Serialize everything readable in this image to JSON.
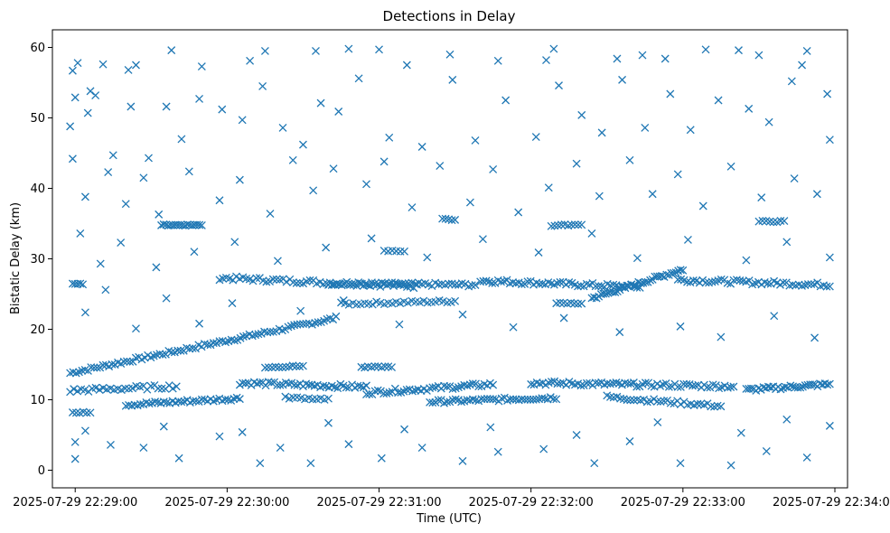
{
  "chart_data": {
    "type": "scatter",
    "title": "Detections in Delay",
    "xlabel": "Time (UTC)",
    "ylabel": "Bistatic Delay (km)",
    "x_unit": "time",
    "xlim": [
      "2025-07-29 22:28:51",
      "2025-07-29 22:34:05"
    ],
    "ylim": [
      -2.5,
      62.5
    ],
    "x_ticks": [
      {
        "value": "2025-07-29 22:29:00",
        "label": "2025-07-29 22:29:00"
      },
      {
        "value": "2025-07-29 22:30:00",
        "label": "2025-07-29 22:30:00"
      },
      {
        "value": "2025-07-29 22:31:00",
        "label": "2025-07-29 22:31:00"
      },
      {
        "value": "2025-07-29 22:32:00",
        "label": "2025-07-29 22:32:00"
      },
      {
        "value": "2025-07-29 22:33:00",
        "label": "2025-07-29 22:33:00"
      },
      {
        "value": "2025-07-29 22:34:00",
        "label": "2025-07-29 22:34:00"
      }
    ],
    "y_ticks": [
      0,
      10,
      20,
      30,
      40,
      50,
      60
    ],
    "grid": false,
    "legend": "none",
    "marker": "x",
    "color": "#1f77b4",
    "points": [
      {
        "x": "2025-07-29 22:28:59",
        "y": 56.7
      },
      {
        "x": "2025-07-29 22:29:01",
        "y": 57.8
      },
      {
        "x": "2025-07-29 22:29:06",
        "y": 53.8
      },
      {
        "x": "2025-07-29 22:29:11",
        "y": 57.6
      },
      {
        "x": "2025-07-29 22:29:21",
        "y": 56.8
      },
      {
        "x": "2025-07-29 22:29:24",
        "y": 57.5
      },
      {
        "x": "2025-07-29 22:29:38",
        "y": 59.6
      },
      {
        "x": "2025-07-29 22:29:50",
        "y": 57.3
      },
      {
        "x": "2025-07-29 22:30:09",
        "y": 58.1
      },
      {
        "x": "2025-07-29 22:30:15",
        "y": 59.5
      },
      {
        "x": "2025-07-29 22:30:35",
        "y": 59.5
      },
      {
        "x": "2025-07-29 22:30:48",
        "y": 59.8
      },
      {
        "x": "2025-07-29 22:31:00",
        "y": 59.7
      },
      {
        "x": "2025-07-29 22:31:11",
        "y": 57.5
      },
      {
        "x": "2025-07-29 22:31:28",
        "y": 59.0
      },
      {
        "x": "2025-07-29 22:31:47",
        "y": 58.1
      },
      {
        "x": "2025-07-29 22:32:06",
        "y": 58.2
      },
      {
        "x": "2025-07-29 22:32:09",
        "y": 59.8
      },
      {
        "x": "2025-07-29 22:32:34",
        "y": 58.4
      },
      {
        "x": "2025-07-29 22:32:44",
        "y": 58.9
      },
      {
        "x": "2025-07-29 22:32:53",
        "y": 58.4
      },
      {
        "x": "2025-07-29 22:33:09",
        "y": 59.7
      },
      {
        "x": "2025-07-29 22:33:22",
        "y": 59.6
      },
      {
        "x": "2025-07-29 22:33:30",
        "y": 58.9
      },
      {
        "x": "2025-07-29 22:33:49",
        "y": 59.5
      },
      {
        "x": "2025-07-29 22:33:47",
        "y": 57.5
      },
      {
        "x": "2025-07-29 22:28:58",
        "y": 48.8
      },
      {
        "x": "2025-07-29 22:29:00",
        "y": 52.9
      },
      {
        "x": "2025-07-29 22:29:05",
        "y": 50.7
      },
      {
        "x": "2025-07-29 22:29:08",
        "y": 53.2
      },
      {
        "x": "2025-07-29 22:29:15",
        "y": 44.7
      },
      {
        "x": "2025-07-29 22:29:22",
        "y": 51.6
      },
      {
        "x": "2025-07-29 22:29:29",
        "y": 44.3
      },
      {
        "x": "2025-07-29 22:29:36",
        "y": 51.6
      },
      {
        "x": "2025-07-29 22:29:42",
        "y": 47.0
      },
      {
        "x": "2025-07-29 22:29:49",
        "y": 52.7
      },
      {
        "x": "2025-07-29 22:29:58",
        "y": 51.2
      },
      {
        "x": "2025-07-29 22:30:06",
        "y": 49.7
      },
      {
        "x": "2025-07-29 22:30:14",
        "y": 54.5
      },
      {
        "x": "2025-07-29 22:30:22",
        "y": 48.6
      },
      {
        "x": "2025-07-29 22:30:30",
        "y": 46.2
      },
      {
        "x": "2025-07-29 22:30:37",
        "y": 52.1
      },
      {
        "x": "2025-07-29 22:30:44",
        "y": 50.9
      },
      {
        "x": "2025-07-29 22:30:52",
        "y": 55.6
      },
      {
        "x": "2025-07-29 22:31:04",
        "y": 47.2
      },
      {
        "x": "2025-07-29 22:31:17",
        "y": 45.9
      },
      {
        "x": "2025-07-29 22:31:29",
        "y": 55.4
      },
      {
        "x": "2025-07-29 22:31:38",
        "y": 46.8
      },
      {
        "x": "2025-07-29 22:31:50",
        "y": 52.5
      },
      {
        "x": "2025-07-29 22:32:02",
        "y": 47.3
      },
      {
        "x": "2025-07-29 22:32:11",
        "y": 54.6
      },
      {
        "x": "2025-07-29 22:32:20",
        "y": 50.4
      },
      {
        "x": "2025-07-29 22:32:28",
        "y": 47.9
      },
      {
        "x": "2025-07-29 22:32:36",
        "y": 55.4
      },
      {
        "x": "2025-07-29 22:32:45",
        "y": 48.6
      },
      {
        "x": "2025-07-29 22:32:55",
        "y": 53.4
      },
      {
        "x": "2025-07-29 22:33:03",
        "y": 48.3
      },
      {
        "x": "2025-07-29 22:33:14",
        "y": 52.5
      },
      {
        "x": "2025-07-29 22:33:26",
        "y": 51.3
      },
      {
        "x": "2025-07-29 22:33:34",
        "y": 49.4
      },
      {
        "x": "2025-07-29 22:33:43",
        "y": 55.2
      },
      {
        "x": "2025-07-29 22:33:57",
        "y": 53.4
      },
      {
        "x": "2025-07-29 22:33:58",
        "y": 46.9
      },
      {
        "x": "2025-07-29 22:28:59",
        "y": 44.2
      },
      {
        "x": "2025-07-29 22:29:04",
        "y": 38.8
      },
      {
        "x": "2025-07-29 22:29:13",
        "y": 42.3
      },
      {
        "x": "2025-07-29 22:29:20",
        "y": 37.8
      },
      {
        "x": "2025-07-29 22:29:27",
        "y": 41.5
      },
      {
        "x": "2025-07-29 22:29:33",
        "y": 36.3
      },
      {
        "x": "2025-07-29 22:29:45",
        "y": 42.4
      },
      {
        "x": "2025-07-29 22:29:57",
        "y": 38.3
      },
      {
        "x": "2025-07-29 22:30:05",
        "y": 41.2
      },
      {
        "x": "2025-07-29 22:30:17",
        "y": 36.4
      },
      {
        "x": "2025-07-29 22:30:26",
        "y": 44.0
      },
      {
        "x": "2025-07-29 22:30:34",
        "y": 39.7
      },
      {
        "x": "2025-07-29 22:30:42",
        "y": 42.8
      },
      {
        "x": "2025-07-29 22:30:55",
        "y": 40.6
      },
      {
        "x": "2025-07-29 22:31:02",
        "y": 43.8
      },
      {
        "x": "2025-07-29 22:31:13",
        "y": 37.3
      },
      {
        "x": "2025-07-29 22:31:24",
        "y": 43.2
      },
      {
        "x": "2025-07-29 22:31:36",
        "y": 38.0
      },
      {
        "x": "2025-07-29 22:31:45",
        "y": 42.7
      },
      {
        "x": "2025-07-29 22:31:55",
        "y": 36.6
      },
      {
        "x": "2025-07-29 22:32:07",
        "y": 40.1
      },
      {
        "x": "2025-07-29 22:32:18",
        "y": 43.5
      },
      {
        "x": "2025-07-29 22:32:27",
        "y": 38.9
      },
      {
        "x": "2025-07-29 22:32:39",
        "y": 44.0
      },
      {
        "x": "2025-07-29 22:32:48",
        "y": 39.2
      },
      {
        "x": "2025-07-29 22:32:58",
        "y": 42.0
      },
      {
        "x": "2025-07-29 22:33:08",
        "y": 37.5
      },
      {
        "x": "2025-07-29 22:33:19",
        "y": 43.1
      },
      {
        "x": "2025-07-29 22:33:31",
        "y": 38.7
      },
      {
        "x": "2025-07-29 22:33:44",
        "y": 41.4
      },
      {
        "x": "2025-07-29 22:33:53",
        "y": 39.2
      },
      {
        "x": "2025-07-29 22:29:02",
        "y": 33.6
      },
      {
        "x": "2025-07-29 22:29:10",
        "y": 29.3
      },
      {
        "x": "2025-07-29 22:29:18",
        "y": 32.3
      },
      {
        "x": "2025-07-29 22:29:32",
        "y": 28.8
      },
      {
        "x": "2025-07-29 22:29:47",
        "y": 31.0
      },
      {
        "x": "2025-07-29 22:30:03",
        "y": 32.4
      },
      {
        "x": "2025-07-29 22:30:20",
        "y": 29.7
      },
      {
        "x": "2025-07-29 22:30:39",
        "y": 31.6
      },
      {
        "x": "2025-07-29 22:30:57",
        "y": 32.9
      },
      {
        "x": "2025-07-29 22:31:19",
        "y": 30.2
      },
      {
        "x": "2025-07-29 22:31:41",
        "y": 32.8
      },
      {
        "x": "2025-07-29 22:32:03",
        "y": 30.9
      },
      {
        "x": "2025-07-29 22:32:24",
        "y": 33.6
      },
      {
        "x": "2025-07-29 22:32:42",
        "y": 30.1
      },
      {
        "x": "2025-07-29 22:33:02",
        "y": 32.7
      },
      {
        "x": "2025-07-29 22:33:25",
        "y": 29.8
      },
      {
        "x": "2025-07-29 22:33:41",
        "y": 32.4
      },
      {
        "x": "2025-07-29 22:33:58",
        "y": 30.2
      },
      {
        "x": "2025-07-29 22:29:04",
        "y": 22.4
      },
      {
        "x": "2025-07-29 22:29:12",
        "y": 25.6
      },
      {
        "x": "2025-07-29 22:29:24",
        "y": 20.1
      },
      {
        "x": "2025-07-29 22:29:36",
        "y": 24.4
      },
      {
        "x": "2025-07-29 22:29:49",
        "y": 20.8
      },
      {
        "x": "2025-07-29 22:30:02",
        "y": 23.7
      },
      {
        "x": "2025-07-29 22:30:29",
        "y": 22.6
      },
      {
        "x": "2025-07-29 22:30:46",
        "y": 24.1
      },
      {
        "x": "2025-07-29 22:31:08",
        "y": 20.7
      },
      {
        "x": "2025-07-29 22:31:33",
        "y": 22.1
      },
      {
        "x": "2025-07-29 22:31:53",
        "y": 20.3
      },
      {
        "x": "2025-07-29 22:32:13",
        "y": 21.6
      },
      {
        "x": "2025-07-29 22:32:35",
        "y": 19.6
      },
      {
        "x": "2025-07-29 22:32:59",
        "y": 20.4
      },
      {
        "x": "2025-07-29 22:33:15",
        "y": 18.9
      },
      {
        "x": "2025-07-29 22:33:36",
        "y": 21.9
      },
      {
        "x": "2025-07-29 22:33:52",
        "y": 18.8
      },
      {
        "x": "2025-07-29 22:29:00",
        "y": 4.0
      },
      {
        "x": "2025-07-29 22:29:00",
        "y": 1.6
      },
      {
        "x": "2025-07-29 22:29:14",
        "y": 3.6
      },
      {
        "x": "2025-07-29 22:29:27",
        "y": 3.2
      },
      {
        "x": "2025-07-29 22:29:41",
        "y": 1.7
      },
      {
        "x": "2025-07-29 22:29:57",
        "y": 4.8
      },
      {
        "x": "2025-07-29 22:30:13",
        "y": 1.0
      },
      {
        "x": "2025-07-29 22:30:21",
        "y": 3.2
      },
      {
        "x": "2025-07-29 22:30:33",
        "y": 1.0
      },
      {
        "x": "2025-07-29 22:30:48",
        "y": 3.7
      },
      {
        "x": "2025-07-29 22:31:01",
        "y": 1.7
      },
      {
        "x": "2025-07-29 22:31:17",
        "y": 3.2
      },
      {
        "x": "2025-07-29 22:31:33",
        "y": 1.3
      },
      {
        "x": "2025-07-29 22:31:47",
        "y": 2.6
      },
      {
        "x": "2025-07-29 22:32:05",
        "y": 3.0
      },
      {
        "x": "2025-07-29 22:32:25",
        "y": 1.0
      },
      {
        "x": "2025-07-29 22:32:39",
        "y": 4.1
      },
      {
        "x": "2025-07-29 22:32:59",
        "y": 1.0
      },
      {
        "x": "2025-07-29 22:33:19",
        "y": 0.7
      },
      {
        "x": "2025-07-29 22:33:33",
        "y": 2.7
      },
      {
        "x": "2025-07-29 22:33:49",
        "y": 1.8
      },
      {
        "x": "2025-07-29 22:33:58",
        "y": 6.3
      },
      {
        "x": "2025-07-29 22:29:04",
        "y": 5.6
      },
      {
        "x": "2025-07-29 22:29:35",
        "y": 6.2
      },
      {
        "x": "2025-07-29 22:30:06",
        "y": 5.4
      },
      {
        "x": "2025-07-29 22:30:40",
        "y": 6.7
      },
      {
        "x": "2025-07-29 22:31:10",
        "y": 5.8
      },
      {
        "x": "2025-07-29 22:31:44",
        "y": 6.1
      },
      {
        "x": "2025-07-29 22:32:18",
        "y": 5.0
      },
      {
        "x": "2025-07-29 22:32:50",
        "y": 6.8
      },
      {
        "x": "2025-07-29 22:33:23",
        "y": 5.3
      },
      {
        "x": "2025-07-29 22:33:41",
        "y": 7.2
      }
    ],
    "tracks": [
      {
        "x_start": "2025-07-29 22:28:58",
        "x_end": "2025-07-29 22:30:43",
        "y_start": 13.8,
        "y_end": 21.6,
        "count": 90,
        "jitter": 0.25
      },
      {
        "x_start": "2025-07-29 22:29:57",
        "x_end": "2025-07-29 22:31:15",
        "y_start": 27.3,
        "y_end": 26.1,
        "count": 60,
        "jitter": 0.3
      },
      {
        "x_start": "2025-07-29 22:30:40",
        "x_end": "2025-07-29 22:31:38",
        "y_start": 26.5,
        "y_end": 26.3,
        "count": 45,
        "jitter": 0.25
      },
      {
        "x_start": "2025-07-29 22:30:45",
        "x_end": "2025-07-29 22:31:30",
        "y_start": 23.6,
        "y_end": 24.0,
        "count": 30,
        "jitter": 0.2
      },
      {
        "x_start": "2025-07-29 22:31:40",
        "x_end": "2025-07-29 22:32:43",
        "y_start": 26.9,
        "y_end": 26.0,
        "count": 55,
        "jitter": 0.3
      },
      {
        "x_start": "2025-07-29 22:32:24",
        "x_end": "2025-07-29 22:33:00",
        "y_start": 24.4,
        "y_end": 28.5,
        "count": 40,
        "jitter": 0.25
      },
      {
        "x_start": "2025-07-29 22:32:58",
        "x_end": "2025-07-29 22:33:58",
        "y_start": 27.0,
        "y_end": 26.3,
        "count": 50,
        "jitter": 0.3
      },
      {
        "x_start": "2025-07-29 22:29:20",
        "x_end": "2025-07-29 22:30:05",
        "y_start": 9.3,
        "y_end": 10.2,
        "count": 40,
        "jitter": 0.25
      },
      {
        "x_start": "2025-07-29 22:30:05",
        "x_end": "2025-07-29 22:30:55",
        "y_start": 12.4,
        "y_end": 11.8,
        "count": 45,
        "jitter": 0.3
      },
      {
        "x_start": "2025-07-29 22:30:55",
        "x_end": "2025-07-29 22:31:45",
        "y_start": 11.0,
        "y_end": 12.2,
        "count": 45,
        "jitter": 0.3
      },
      {
        "x_start": "2025-07-29 22:31:20",
        "x_end": "2025-07-29 22:32:10",
        "y_start": 9.7,
        "y_end": 10.3,
        "count": 45,
        "jitter": 0.25
      },
      {
        "x_start": "2025-07-29 22:32:00",
        "x_end": "2025-07-29 22:33:20",
        "y_start": 12.4,
        "y_end": 11.9,
        "count": 70,
        "jitter": 0.3
      },
      {
        "x_start": "2025-07-29 22:32:30",
        "x_end": "2025-07-29 22:33:15",
        "y_start": 10.4,
        "y_end": 9.1,
        "count": 35,
        "jitter": 0.25
      },
      {
        "x_start": "2025-07-29 22:33:25",
        "x_end": "2025-07-29 22:33:58",
        "y_start": 11.4,
        "y_end": 12.2,
        "count": 35,
        "jitter": 0.25
      },
      {
        "x_start": "2025-07-29 22:28:58",
        "x_end": "2025-07-29 22:29:40",
        "y_start": 11.3,
        "y_end": 11.9,
        "count": 30,
        "jitter": 0.3
      },
      {
        "x_start": "2025-07-29 22:29:34",
        "x_end": "2025-07-29 22:29:50",
        "y_start": 34.8,
        "y_end": 34.8,
        "count": 18,
        "jitter": 0.1
      },
      {
        "x_start": "2025-07-29 22:30:15",
        "x_end": "2025-07-29 22:30:30",
        "y_start": 14.6,
        "y_end": 14.8,
        "count": 12,
        "jitter": 0.1
      },
      {
        "x_start": "2025-07-29 22:30:53",
        "x_end": "2025-07-29 22:31:05",
        "y_start": 14.6,
        "y_end": 14.7,
        "count": 10,
        "jitter": 0.1
      },
      {
        "x_start": "2025-07-29 22:28:59",
        "x_end": "2025-07-29 22:29:03",
        "y_start": 26.4,
        "y_end": 26.4,
        "count": 5,
        "jitter": 0.1
      },
      {
        "x_start": "2025-07-29 22:28:59",
        "x_end": "2025-07-29 22:29:06",
        "y_start": 8.2,
        "y_end": 8.2,
        "count": 6,
        "jitter": 0.1
      },
      {
        "x_start": "2025-07-29 22:32:08",
        "x_end": "2025-07-29 22:32:20",
        "y_start": 34.7,
        "y_end": 34.9,
        "count": 10,
        "jitter": 0.1
      },
      {
        "x_start": "2025-07-29 22:31:25",
        "x_end": "2025-07-29 22:31:30",
        "y_start": 35.7,
        "y_end": 35.5,
        "count": 5,
        "jitter": 0.1
      },
      {
        "x_start": "2025-07-29 22:30:23",
        "x_end": "2025-07-29 22:30:40",
        "y_start": 10.3,
        "y_end": 10.1,
        "count": 12,
        "jitter": 0.15
      },
      {
        "x_start": "2025-07-29 22:33:30",
        "x_end": "2025-07-29 22:33:40",
        "y_start": 35.3,
        "y_end": 35.3,
        "count": 8,
        "jitter": 0.1
      },
      {
        "x_start": "2025-07-29 22:31:02",
        "x_end": "2025-07-29 22:31:10",
        "y_start": 31.1,
        "y_end": 31.1,
        "count": 6,
        "jitter": 0.1
      },
      {
        "x_start": "2025-07-29 22:32:10",
        "x_end": "2025-07-29 22:32:20",
        "y_start": 23.7,
        "y_end": 23.7,
        "count": 8,
        "jitter": 0.1
      }
    ]
  }
}
